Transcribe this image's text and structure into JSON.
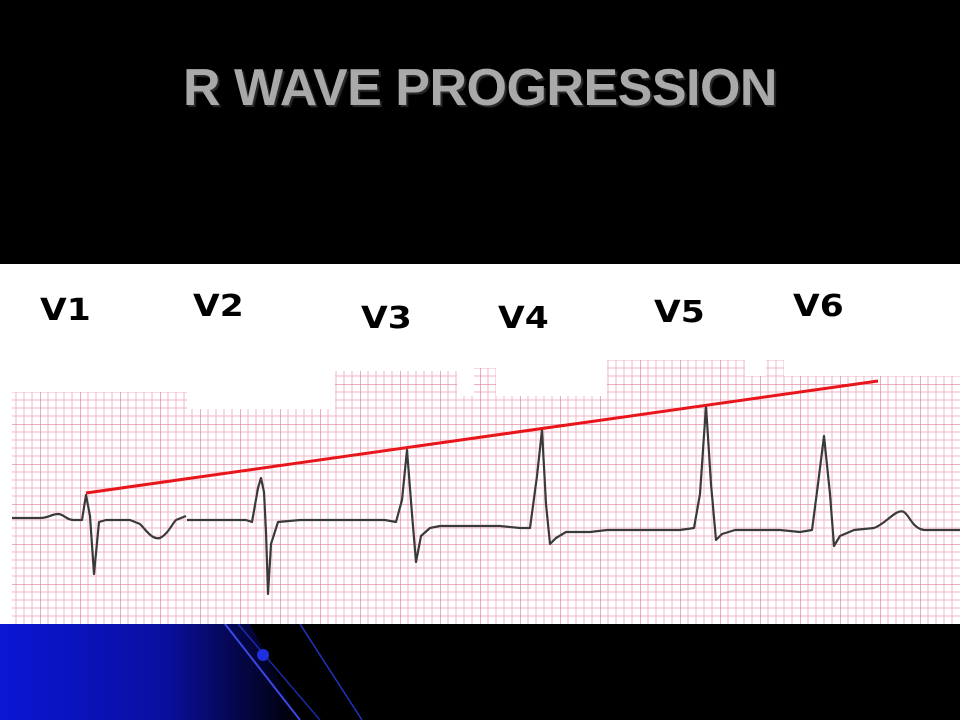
{
  "title": "R WAVE PROGRESSION",
  "leads": [
    {
      "label": "V1",
      "r_amplitude": 0.2
    },
    {
      "label": "V2",
      "r_amplitude": 0.45
    },
    {
      "label": "V3",
      "r_amplitude": 0.55
    },
    {
      "label": "V4",
      "r_amplitude": 0.7
    },
    {
      "label": "V5",
      "r_amplitude": 0.85
    },
    {
      "label": "V6",
      "r_amplitude": 0.75
    }
  ],
  "colors": {
    "background": "#000000",
    "title": "#a9a9a9",
    "grid_minor": "#f2b7c6",
    "grid_major": "#e07f98",
    "trace": "#3a3a3a",
    "progression_line": "#e8151b",
    "accent": "#0a14c8"
  }
}
